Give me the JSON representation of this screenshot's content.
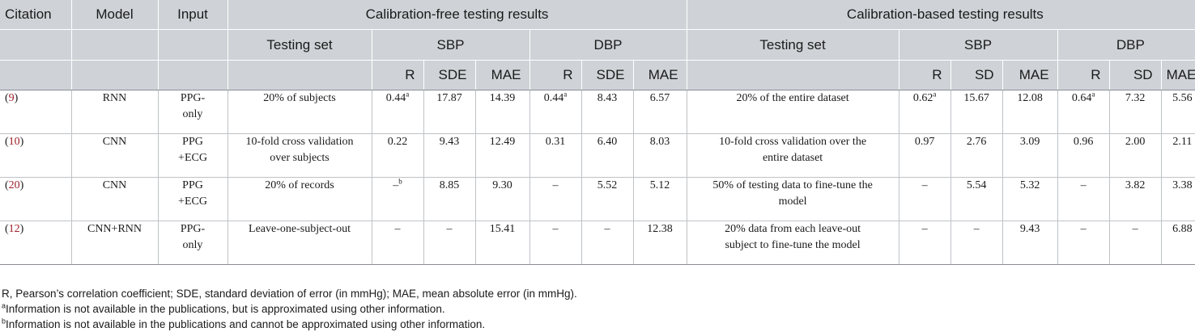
{
  "headers": {
    "citation": "Citation",
    "model": "Model",
    "input": "Input",
    "free_group": "Calibration-free testing results",
    "based_group": "Calibration-based testing results",
    "testing_set": "Testing set",
    "sbp": "SBP",
    "dbp": "DBP",
    "free_metrics": [
      "R",
      "SDE",
      "MAE",
      "R",
      "SDE",
      "MAE"
    ],
    "based_metrics": [
      "R",
      "SD",
      "MAE",
      "R",
      "SD",
      "MAE"
    ]
  },
  "rows": [
    {
      "cite_open": "(",
      "cite_num": "9",
      "cite_close": ")",
      "model": "RNN",
      "input_line1": "PPG-",
      "input_line2": "only",
      "free_set_line1": "20% of subjects",
      "free_set_line2": "",
      "free_sbp_r": "0.44",
      "free_sbp_r_mark": "a",
      "free_sbp_sde": "17.87",
      "free_sbp_mae": "14.39",
      "free_dbp_r": "0.44",
      "free_dbp_r_mark": "a",
      "free_dbp_sde": "8.43",
      "free_dbp_mae": "6.57",
      "based_set_line1": "20% of the entire dataset",
      "based_set_line2": "",
      "based_sbp_r": "0.62",
      "based_sbp_r_mark": "a",
      "based_sbp_sd": "15.67",
      "based_sbp_mae": "12.08",
      "based_dbp_r": "0.64",
      "based_dbp_r_mark": "a",
      "based_dbp_sd": "7.32",
      "based_dbp_mae": "5.56"
    },
    {
      "cite_open": "(",
      "cite_num": "10",
      "cite_close": ")",
      "model": "CNN",
      "input_line1": "PPG",
      "input_line2": "+ECG",
      "free_set_line1": "10-fold cross validation",
      "free_set_line2": "over subjects",
      "free_sbp_r": "0.22",
      "free_sbp_r_mark": "",
      "free_sbp_sde": "9.43",
      "free_sbp_mae": "12.49",
      "free_dbp_r": "0.31",
      "free_dbp_r_mark": "",
      "free_dbp_sde": "6.40",
      "free_dbp_mae": "8.03",
      "based_set_line1": "10-fold cross validation over the",
      "based_set_line2": "entire dataset",
      "based_sbp_r": "0.97",
      "based_sbp_r_mark": "",
      "based_sbp_sd": "2.76",
      "based_sbp_mae": "3.09",
      "based_dbp_r": "0.96",
      "based_dbp_r_mark": "",
      "based_dbp_sd": "2.00",
      "based_dbp_mae": "2.11"
    },
    {
      "cite_open": "(",
      "cite_num": "20",
      "cite_close": ")",
      "model": "CNN",
      "input_line1": "PPG",
      "input_line2": "+ECG",
      "free_set_line1": "20% of records",
      "free_set_line2": "",
      "free_sbp_r": "–",
      "free_sbp_r_mark": "b",
      "free_sbp_sde": "8.85",
      "free_sbp_mae": "9.30",
      "free_dbp_r": "–",
      "free_dbp_r_mark": "",
      "free_dbp_sde": "5.52",
      "free_dbp_mae": "5.12",
      "based_set_line1": "50% of testing data to fine-tune the",
      "based_set_line2": "model",
      "based_sbp_r": "–",
      "based_sbp_r_mark": "",
      "based_sbp_sd": "5.54",
      "based_sbp_mae": "5.32",
      "based_dbp_r": "–",
      "based_dbp_r_mark": "",
      "based_dbp_sd": "3.82",
      "based_dbp_mae": "3.38"
    },
    {
      "cite_open": "(",
      "cite_num": "12",
      "cite_close": ")",
      "model": "CNN+RNN",
      "input_line1": "PPG-",
      "input_line2": "only",
      "free_set_line1": "Leave-one-subject-out",
      "free_set_line2": "",
      "free_sbp_r": "–",
      "free_sbp_r_mark": "",
      "free_sbp_sde": "–",
      "free_sbp_mae": "15.41",
      "free_dbp_r": "–",
      "free_dbp_r_mark": "",
      "free_dbp_sde": "–",
      "free_dbp_mae": "12.38",
      "based_set_line1": "20% data from each leave-out",
      "based_set_line2": "subject to fine-tune the model",
      "based_sbp_r": "–",
      "based_sbp_r_mark": "",
      "based_sbp_sd": "–",
      "based_sbp_mae": "9.43",
      "based_dbp_r": "–",
      "based_dbp_r_mark": "",
      "based_dbp_sd": "–",
      "based_dbp_mae": "6.88"
    }
  ],
  "footnotes": {
    "abbrev": "R, Pearson’s correlation coefficient; SDE, standard deviation of error (in mmHg); MAE, mean absolute error (in mmHg).",
    "a_mark": "a",
    "a_text": "Information is not available in the publications, but is approximated using other information.",
    "b_mark": "b",
    "b_text": "Information is not available in the publications and cannot be approximated using other information."
  },
  "colors": {
    "header_bg": "#cfd3d7",
    "citation_link": "#a0202a",
    "rule": "#bfc3c7"
  }
}
